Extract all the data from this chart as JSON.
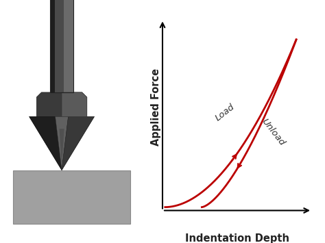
{
  "background_color": "#ffffff",
  "figure_width": 4.74,
  "figure_height": 3.55,
  "dpi": 100,
  "curve_color": "#bb0000",
  "curve_linewidth": 2.0,
  "xlabel": "Indentation Depth",
  "ylabel": "Applied Force",
  "xlabel_fontsize": 10.5,
  "ylabel_fontsize": 10.5,
  "xlabel_fontweight": "bold",
  "ylabel_fontweight": "bold",
  "load_label": "Load",
  "unload_label": "Unload",
  "label_fontsize": 9.5,
  "shaft_color_dark": "#2a2a2a",
  "shaft_color_mid": "#4a4a4a",
  "shaft_color_light": "#6a6a6a",
  "collar_color": "#3a3a3a",
  "cone_dark": "#2a2a2a",
  "cone_mid": "#4a4a4a",
  "cone_light": "#686868",
  "cone_lighter": "#888888",
  "specimen_color": "#a0a0a0",
  "specimen_edge": "#888888"
}
